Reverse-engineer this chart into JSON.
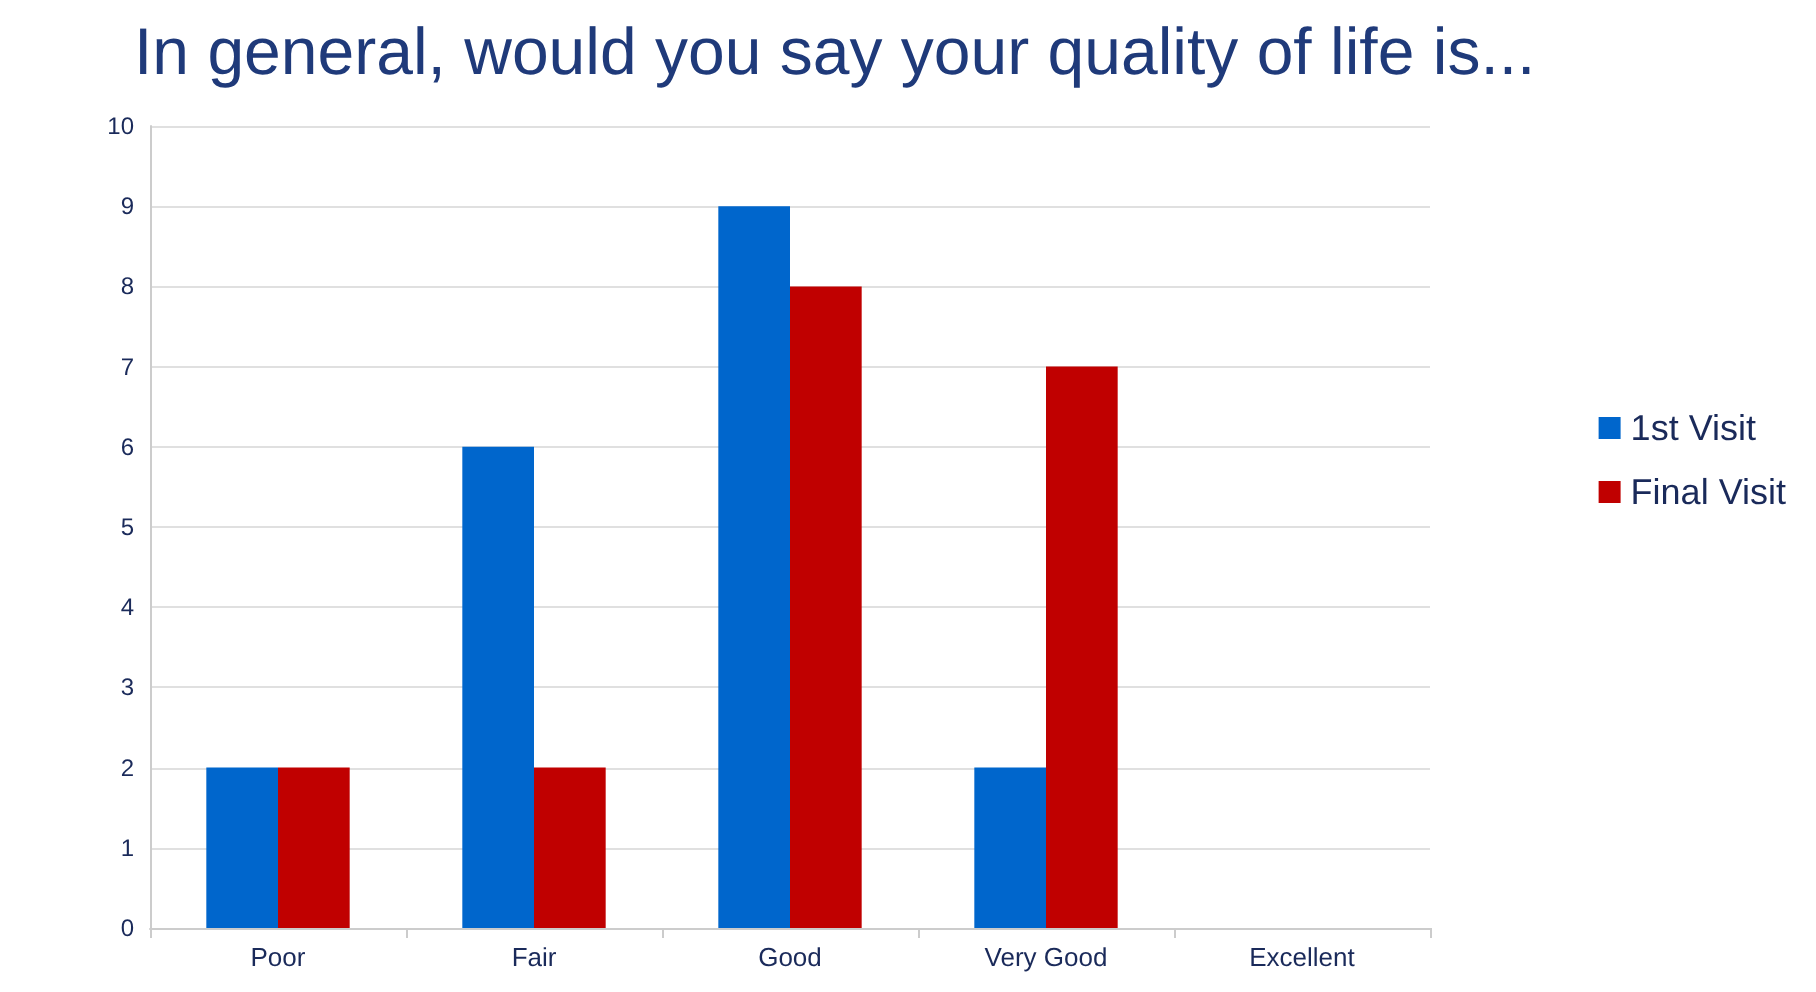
{
  "chart_data": {
    "type": "bar",
    "title": "In general, would you say your quality of life is...",
    "categories": [
      "Poor",
      "Fair",
      "Good",
      "Very Good",
      "Excellent"
    ],
    "series": [
      {
        "name": "1st Visit",
        "color": "#0066cc",
        "values": [
          2,
          6,
          9,
          2,
          0
        ]
      },
      {
        "name": "Final Visit",
        "color": "#c00000",
        "values": [
          2,
          2,
          8,
          7,
          0
        ]
      }
    ],
    "ylim": [
      0,
      10
    ],
    "yticks": [
      0,
      1,
      2,
      3,
      4,
      5,
      6,
      7,
      8,
      9,
      10
    ],
    "grid": "y",
    "legend": "right"
  }
}
